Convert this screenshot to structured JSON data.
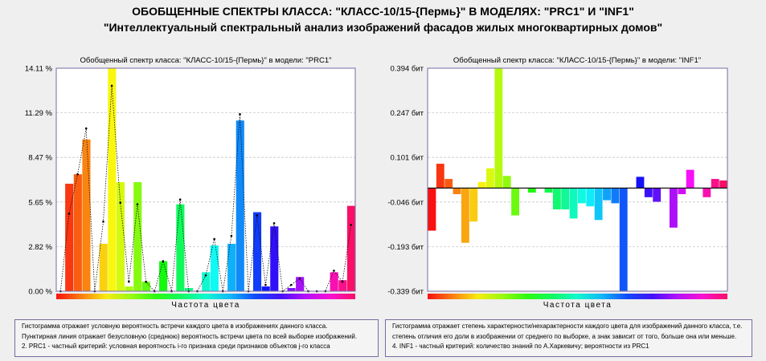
{
  "header": {
    "title": "ОБОБЩЕННЫЕ СПЕКТРЫ КЛАССА: \"КЛАСС-10/15-{Пермь}\" В МОДЕЛЯХ: \"PRC1\" И \"INF1\"",
    "subtitle": "\"Интеллектуальный спектральный анализ изображений фасадов жилых многоквартирных домов\""
  },
  "colors": {
    "frame": "#7a6aa0",
    "grid": "#c8c8c8",
    "bg": "#efefef"
  },
  "chart_data": [
    {
      "type": "bar",
      "title": "Обобщенный спектр класса: \"КЛАСС-10/15-{Пермь}\" в модели: \"PRC1\"",
      "xlabel": "Частота цвета",
      "ylabel": "",
      "ylim": [
        0,
        14.11
      ],
      "yticks": [
        "14.11 %",
        "11.29 %",
        "8.47 %",
        "5.65 %",
        "2.82 %",
        "0.00 %"
      ],
      "grid": true,
      "series": [
        {
          "values": [
            0.0,
            6.8,
            7.4,
            9.6,
            0.0,
            3.0,
            14.1,
            6.9,
            0.3,
            6.9,
            0.6,
            0.0,
            1.9,
            0.0,
            5.5,
            0.2,
            0.0,
            1.2,
            2.9,
            0.0,
            3.0,
            10.8,
            0.0,
            5.0,
            0.3,
            4.1,
            0.0,
            0.2,
            0.9,
            0.0,
            0.0,
            0.0,
            1.2,
            0.7,
            5.4
          ]
        },
        {
          "values": [
            0.0,
            4.9,
            7.4,
            10.3,
            0.0,
            4.4,
            13.0,
            5.6,
            0.6,
            5.5,
            0.6,
            0.0,
            1.9,
            0.0,
            5.8,
            0.0,
            0.0,
            1.0,
            3.3,
            0.0,
            3.5,
            11.2,
            0.0,
            4.8,
            0.4,
            4.3,
            0.0,
            0.4,
            0.8,
            0.0,
            0.0,
            0.0,
            1.3,
            0.6,
            4.2
          ]
        }
      ]
    },
    {
      "type": "bar",
      "title": "Обобщенный спектр класса: \"КЛАСС-10/15-{Пермь}\" в модели: \"INF1\"",
      "xlabel": "Частота цвета",
      "ylabel": "",
      "ylim": [
        -0.339,
        0.394
      ],
      "yticks": [
        "0.394 бит",
        "0.247 бит",
        "0.101 бит",
        "-0.046 бит",
        "-0.193 бит",
        "-0.339 бит"
      ],
      "grid": true,
      "series": [
        {
          "values": [
            -0.14,
            0.08,
            0.03,
            -0.02,
            -0.18,
            -0.11,
            0.02,
            0.065,
            0.394,
            0.04,
            -0.09,
            0.0,
            -0.015,
            0.0,
            -0.015,
            -0.07,
            -0.07,
            -0.1,
            -0.05,
            -0.06,
            -0.105,
            -0.04,
            -0.05,
            -0.339,
            0.0,
            0.037,
            -0.03,
            -0.045,
            0.0,
            -0.13,
            -0.02,
            0.06,
            0.0,
            -0.03,
            0.03,
            0.025
          ]
        }
      ]
    }
  ],
  "legend_left": {
    "line1": "Гистограмма отражает условную вероятность встречи каждого цвета в изображениях данного класса.",
    "line2": "Пунктирная линия отражает безусловную (среднюю) вероятность встречи цвета по всей выборке изображений.",
    "line3": "2. PRC1 - частный критерий: условная вероятность i-го признака среди признаков объектов j-го класса"
  },
  "legend_right": {
    "line1": "Гистограмма отражает степень характерности/нехарактерности каждого цвета для изображений данного класса, т.е.",
    "line2": "степень отличия его доли в изображении от среднего по выборке, а знак зависит от того, больше она или меньше.",
    "line3": "4. INF1 - частный критерий: количество знаний по А.Харкевичу; вероятности из PRC1"
  }
}
